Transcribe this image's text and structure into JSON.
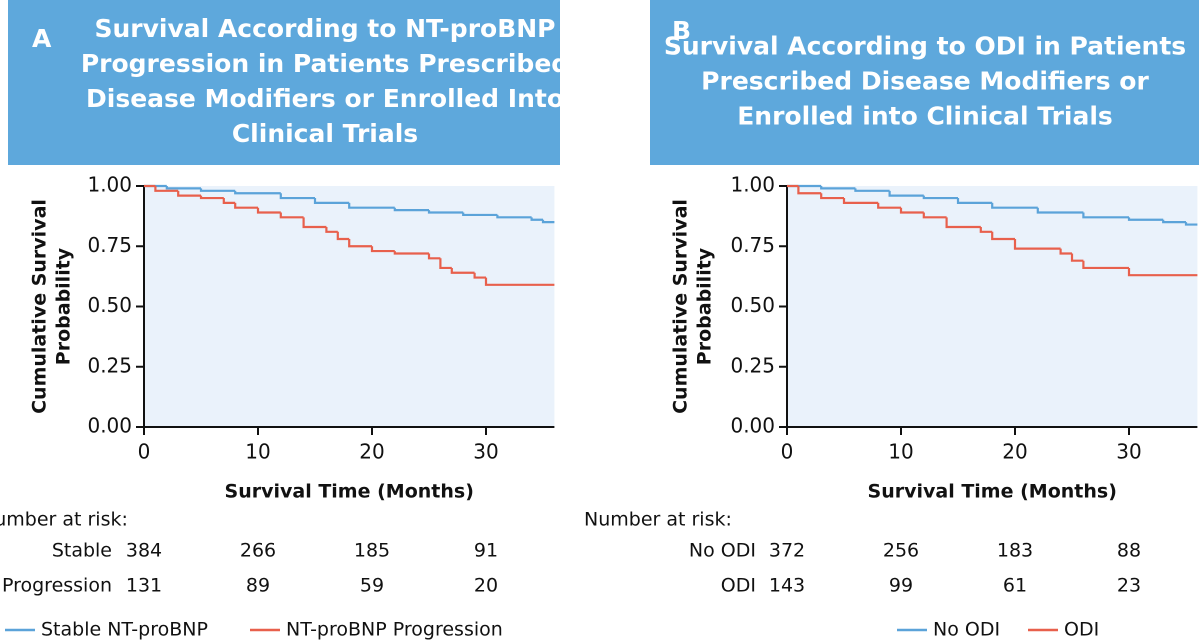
{
  "chart_data": [
    {
      "type": "step",
      "panel": "A",
      "title": [
        "Survival According to NT-proBNP",
        "Progression in Patients Prescribed",
        "Disease Modifiers or Enrolled Into",
        "Clinical Trials"
      ],
      "ylabel": [
        "Cumulative Survival",
        "Probability"
      ],
      "xlabel": "Survival Time (Months)",
      "xlim": [
        0,
        36
      ],
      "xticks": [
        0,
        10,
        20,
        30
      ],
      "ylim": [
        0,
        1
      ],
      "yticks": [
        {
          "value": 0,
          "label": "0.00"
        },
        {
          "value": 0.25,
          "label": "0.25"
        },
        {
          "value": 0.5,
          "label": "0.50"
        },
        {
          "value": 0.75,
          "label": "0.75"
        },
        {
          "value": 1,
          "label": "1.00"
        }
      ],
      "series": [
        {
          "name": "Stable NT-proBNP",
          "color": "#5ba3d9",
          "x": [
            0,
            2,
            5,
            8,
            12,
            15,
            18,
            22,
            25,
            28,
            31,
            34,
            35,
            36
          ],
          "values": [
            1,
            0.99,
            0.98,
            0.97,
            0.95,
            0.93,
            0.91,
            0.9,
            0.89,
            0.88,
            0.87,
            0.86,
            0.85,
            0.85
          ]
        },
        {
          "name": "NT-proBNP Progression",
          "color": "#e8604c",
          "x": [
            0,
            1,
            3,
            5,
            7,
            8,
            10,
            12,
            14,
            16,
            17,
            18,
            20,
            22,
            25,
            26,
            27,
            29,
            30,
            36
          ],
          "values": [
            1,
            0.98,
            0.96,
            0.95,
            0.93,
            0.91,
            0.89,
            0.87,
            0.83,
            0.81,
            0.78,
            0.75,
            0.73,
            0.72,
            0.7,
            0.66,
            0.64,
            0.62,
            0.59,
            0.59
          ]
        }
      ],
      "risk_table": {
        "title": "Number at risk:",
        "rows": [
          {
            "label": "Stable",
            "values": [
              384,
              266,
              185,
              91
            ]
          },
          {
            "label": "Progression",
            "values": [
              131,
              89,
              59,
              20
            ]
          }
        ]
      }
    },
    {
      "type": "step",
      "panel": "B",
      "title": [
        "Survival According to ODI in Patients",
        "Prescribed Disease Modifiers or",
        "Enrolled into Clinical Trials"
      ],
      "ylabel": [
        "Cumulative Survival",
        "Probability"
      ],
      "xlabel": "Survival Time (Months)",
      "xlim": [
        0,
        36
      ],
      "xticks": [
        0,
        10,
        20,
        30
      ],
      "ylim": [
        0,
        1
      ],
      "yticks": [
        {
          "value": 0,
          "label": "0.00"
        },
        {
          "value": 0.25,
          "label": "0.25"
        },
        {
          "value": 0.5,
          "label": "0.50"
        },
        {
          "value": 0.75,
          "label": "0.75"
        },
        {
          "value": 1,
          "label": "1.00"
        }
      ],
      "series": [
        {
          "name": "No ODI",
          "color": "#5ba3d9",
          "x": [
            0,
            3,
            6,
            9,
            12,
            15,
            18,
            22,
            26,
            30,
            33,
            35,
            36
          ],
          "values": [
            1,
            0.99,
            0.98,
            0.96,
            0.95,
            0.93,
            0.91,
            0.89,
            0.87,
            0.86,
            0.85,
            0.84,
            0.84
          ]
        },
        {
          "name": "ODI",
          "color": "#e8604c",
          "x": [
            0,
            1,
            3,
            5,
            8,
            10,
            12,
            14,
            17,
            18,
            20,
            24,
            25,
            26,
            30,
            36
          ],
          "values": [
            1,
            0.97,
            0.95,
            0.93,
            0.91,
            0.89,
            0.87,
            0.83,
            0.81,
            0.78,
            0.74,
            0.72,
            0.69,
            0.66,
            0.63,
            0.63
          ]
        }
      ],
      "risk_table": {
        "title": "Number at risk:",
        "rows": [
          {
            "label": "No ODI",
            "values": [
              372,
              256,
              183,
              88
            ]
          },
          {
            "label": "ODI",
            "values": [
              143,
              99,
              61,
              23
            ]
          }
        ]
      }
    }
  ]
}
